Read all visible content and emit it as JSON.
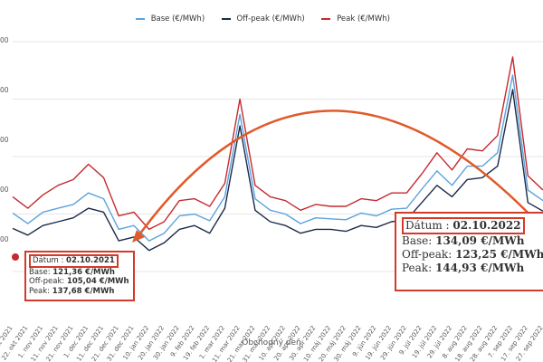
{
  "chart_data": {
    "type": "line",
    "xlabel": "Obchodný deň",
    "ylabel": "",
    "y_tick_labels": [
      "00",
      "00",
      "00",
      "00",
      "00"
    ],
    "x_tick_labels": [
      "12. okt 2021",
      "22. okt 2021",
      "1. nov 2021",
      "11. nov 2021",
      "21. nov 2021",
      "1. dec 2021",
      "11. dec 2021",
      "21. dec 2021",
      "31. dec 2021",
      "10. jan 2022",
      "20. jan 2022",
      "30. jan 2022",
      "9. feb 2022",
      "19. feb 2022",
      "1. mar 2022",
      "11. mar 2022",
      "21. mar 2022",
      "31. mar 2022",
      "10. apr 2022",
      "20. apr 2022",
      "30. apr 2022",
      "10. máj 2022",
      "20. máj 2022",
      "30. máj 2022",
      "9. jún 2022",
      "19. jún 2022",
      "29. jún 2022",
      "9. júl 2022",
      "19. júl 2022",
      "29. júl 2022",
      "8. aug 2022",
      "18. aug 2022",
      "28. aug 2022",
      "7. sep 2022",
      "17. sep 2022",
      "27. sep 2022"
    ],
    "series": [
      {
        "name": "Base (€/MWh)",
        "color": "#5ba3dc",
        "values": [
          121,
          110,
          122,
          126,
          130,
          142,
          136,
          104,
          108,
          92,
          100,
          118,
          120,
          113,
          138,
          224,
          136,
          124,
          120,
          110,
          116,
          115,
          114,
          121,
          118,
          125,
          126,
          146,
          165,
          150,
          170,
          170,
          184,
          265,
          145,
          134
        ]
      },
      {
        "name": "Off-peak (€/MWh)",
        "color": "#1a2a4a",
        "values": [
          105,
          98,
          108,
          112,
          116,
          126,
          122,
          92,
          96,
          82,
          90,
          104,
          108,
          100,
          126,
          212,
          124,
          112,
          108,
          100,
          104,
          104,
          102,
          108,
          106,
          112,
          114,
          132,
          150,
          138,
          156,
          158,
          170,
          250,
          132,
          123
        ]
      },
      {
        "name": "Peak (€/MWh)",
        "color": "#c42a2e",
        "values": [
          138,
          126,
          140,
          150,
          156,
          172,
          158,
          118,
          122,
          104,
          112,
          134,
          136,
          128,
          152,
          240,
          150,
          138,
          134,
          124,
          130,
          128,
          128,
          136,
          134,
          142,
          142,
          162,
          184,
          166,
          188,
          186,
          202,
          284,
          160,
          145
        ]
      }
    ],
    "annotations": [
      {
        "date_label": "Dátum :",
        "date": "02.10.2021",
        "base_label": "Base:",
        "base": "121,36 €/MWh",
        "offpeak_label": "Off-peak:",
        "offpeak": "105,04 €/MWh",
        "peak_label": "Peak:",
        "peak": "137,68 €/MWh"
      },
      {
        "date_label": "Dátum :",
        "date": "02.10.2022",
        "base_label": "Base:",
        "base": "134,09 €/MWh",
        "offpeak_label": "Off-peak:",
        "offpeak": "123,25 €/MWh",
        "peak_label": "Peak:",
        "peak": "144,93 €/MWh"
      }
    ],
    "grid": true,
    "legend_position": "top"
  }
}
